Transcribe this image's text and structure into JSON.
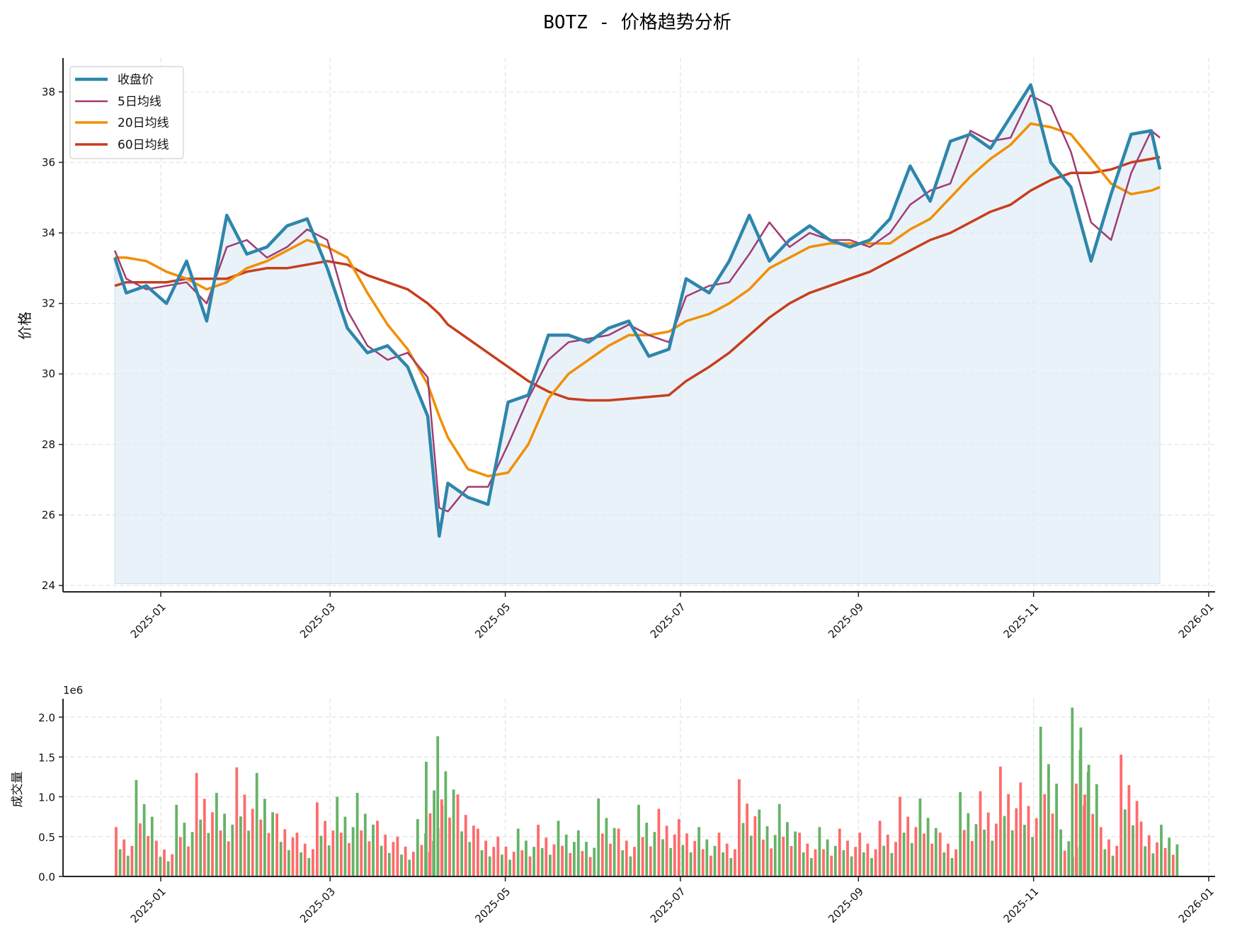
{
  "title": "BOTZ - 价格趋势分析",
  "colors": {
    "close": "#2e86ab",
    "ma5": "#a23b72",
    "ma20": "#f18f01",
    "ma60": "#c73e1d",
    "fill": "#dbe9f3",
    "vol_up": "#ff6b6b",
    "vol_down": "#66b366"
  },
  "price_panel": {
    "ylabel": "价格",
    "yticks": [
      "24",
      "26",
      "28",
      "30",
      "32",
      "34",
      "36",
      "38"
    ],
    "xticks": [
      "2025-01",
      "2025-03",
      "2025-05",
      "2025-07",
      "2025-09",
      "2025-11",
      "2026-01"
    ],
    "legend": [
      "收盘价",
      "5日均线",
      "20日均线",
      "60日均线"
    ]
  },
  "volume_panel": {
    "ylabel": "成交量",
    "multiplier": "1e6",
    "yticks": [
      "0.0",
      "0.5",
      "1.0",
      "1.5",
      "2.0"
    ],
    "xticks": [
      "2025-01",
      "2025-03",
      "2025-05",
      "2025-07",
      "2025-09",
      "2025-11",
      "2026-01"
    ]
  },
  "chart_data": [
    {
      "type": "line",
      "title": "BOTZ - 价格趋势分析",
      "xlabel": "",
      "ylabel": "价格",
      "ylim": [
        23.8,
        38.9
      ],
      "xlim": [
        "2024-11-28",
        "2026-01-03"
      ],
      "grid": true,
      "legend_position": "upper left",
      "x": [
        "2024-12-16",
        "2024-12-20",
        "2024-12-27",
        "2025-01-03",
        "2025-01-10",
        "2025-01-17",
        "2025-01-24",
        "2025-01-31",
        "2025-02-07",
        "2025-02-14",
        "2025-02-21",
        "2025-02-28",
        "2025-03-07",
        "2025-03-14",
        "2025-03-21",
        "2025-03-28",
        "2025-04-04",
        "2025-04-08",
        "2025-04-11",
        "2025-04-18",
        "2025-04-25",
        "2025-05-02",
        "2025-05-09",
        "2025-05-16",
        "2025-05-23",
        "2025-05-30",
        "2025-06-06",
        "2025-06-13",
        "2025-06-20",
        "2025-06-27",
        "2025-07-03",
        "2025-07-11",
        "2025-07-18",
        "2025-07-25",
        "2025-08-01",
        "2025-08-08",
        "2025-08-15",
        "2025-08-22",
        "2025-08-29",
        "2025-09-05",
        "2025-09-12",
        "2025-09-19",
        "2025-09-26",
        "2025-10-03",
        "2025-10-10",
        "2025-10-17",
        "2025-10-24",
        "2025-10-31",
        "2025-11-07",
        "2025-11-14",
        "2025-11-21",
        "2025-11-28",
        "2025-12-05",
        "2025-12-12",
        "2025-12-15"
      ],
      "series": [
        {
          "name": "收盘价",
          "values": [
            33.3,
            32.3,
            32.5,
            32.0,
            33.2,
            31.5,
            34.5,
            33.4,
            33.6,
            34.2,
            34.4,
            33.0,
            31.3,
            30.6,
            30.8,
            30.2,
            28.8,
            25.4,
            26.9,
            26.5,
            26.3,
            29.2,
            29.4,
            31.1,
            31.1,
            30.9,
            31.3,
            31.5,
            30.5,
            30.7,
            32.7,
            32.3,
            33.2,
            34.5,
            33.2,
            33.8,
            34.2,
            33.8,
            33.6,
            33.8,
            34.4,
            35.9,
            34.9,
            36.6,
            36.8,
            36.4,
            37.3,
            38.2,
            36.0,
            35.3,
            33.2,
            35.1,
            36.8,
            36.9,
            35.8
          ]
        },
        {
          "name": "5日均线",
          "values": [
            33.5,
            32.7,
            32.4,
            32.5,
            32.6,
            32.0,
            33.6,
            33.8,
            33.3,
            33.6,
            34.1,
            33.8,
            31.8,
            30.8,
            30.4,
            30.6,
            29.9,
            26.2,
            26.1,
            26.8,
            26.8,
            28.0,
            29.3,
            30.4,
            30.9,
            31.0,
            31.1,
            31.4,
            31.1,
            30.9,
            32.2,
            32.5,
            32.6,
            33.4,
            34.3,
            33.6,
            34.0,
            33.8,
            33.8,
            33.6,
            34.0,
            34.8,
            35.2,
            35.4,
            36.9,
            36.6,
            36.7,
            37.9,
            37.6,
            36.3,
            34.3,
            33.8,
            35.7,
            36.9,
            36.7
          ]
        },
        {
          "name": "20日均线",
          "values": [
            33.3,
            33.3,
            33.2,
            32.9,
            32.7,
            32.4,
            32.6,
            33.0,
            33.2,
            33.5,
            33.8,
            33.6,
            33.3,
            32.3,
            31.4,
            30.7,
            29.7,
            28.8,
            28.2,
            27.3,
            27.1,
            27.2,
            28.0,
            29.3,
            30.0,
            30.4,
            30.8,
            31.1,
            31.1,
            31.2,
            31.5,
            31.7,
            32.0,
            32.4,
            33.0,
            33.3,
            33.6,
            33.7,
            33.7,
            33.7,
            33.7,
            34.1,
            34.4,
            35.0,
            35.6,
            36.1,
            36.5,
            37.1,
            37.0,
            36.8,
            36.1,
            35.4,
            35.1,
            35.2,
            35.3
          ]
        },
        {
          "name": "60日均线",
          "values": [
            32.5,
            32.6,
            32.6,
            32.6,
            32.7,
            32.7,
            32.7,
            32.9,
            33.0,
            33.0,
            33.1,
            33.2,
            33.1,
            32.8,
            32.6,
            32.4,
            32.0,
            31.7,
            31.4,
            31.0,
            30.6,
            30.2,
            29.8,
            29.5,
            29.3,
            29.25,
            29.25,
            29.3,
            29.35,
            29.4,
            29.8,
            30.2,
            30.6,
            31.1,
            31.6,
            32.0,
            32.3,
            32.5,
            32.7,
            32.9,
            33.2,
            33.5,
            33.8,
            34.0,
            34.3,
            34.6,
            34.8,
            35.2,
            35.5,
            35.7,
            35.7,
            35.8,
            36.0,
            36.1,
            36.15
          ]
        }
      ]
    },
    {
      "type": "bar",
      "title": "",
      "xlabel": "",
      "ylabel": "成交量",
      "ylim": [
        0,
        2.23
      ],
      "unit": "1e6",
      "grid": true,
      "x": [
        "2024-12-16",
        "2024-12-23",
        "2024-12-30",
        "2025-01-06",
        "2025-01-13",
        "2025-01-20",
        "2025-01-27",
        "2025-02-03",
        "2025-02-10",
        "2025-02-17",
        "2025-02-24",
        "2025-03-03",
        "2025-03-10",
        "2025-03-17",
        "2025-03-24",
        "2025-03-31",
        "2025-04-03",
        "2025-04-07",
        "2025-04-14",
        "2025-04-21",
        "2025-04-28",
        "2025-05-05",
        "2025-05-12",
        "2025-05-19",
        "2025-05-26",
        "2025-06-02",
        "2025-06-09",
        "2025-06-16",
        "2025-06-23",
        "2025-06-30",
        "2025-07-07",
        "2025-07-14",
        "2025-07-21",
        "2025-07-28",
        "2025-08-04",
        "2025-08-11",
        "2025-08-18",
        "2025-08-25",
        "2025-09-01",
        "2025-09-08",
        "2025-09-15",
        "2025-09-22",
        "2025-09-29",
        "2025-10-06",
        "2025-10-13",
        "2025-10-20",
        "2025-10-27",
        "2025-11-03",
        "2025-11-10",
        "2025-11-14",
        "2025-11-17",
        "2025-11-24",
        "2025-12-01",
        "2025-12-08",
        "2025-12-15"
      ],
      "values": [
        0.62,
        1.21,
        0.45,
        0.9,
        1.3,
        1.05,
        1.37,
        1.3,
        0.79,
        0.55,
        0.93,
        1.0,
        1.05,
        0.7,
        0.5,
        0.72,
        1.44,
        1.76,
        1.03,
        0.6,
        0.5,
        0.6,
        0.65,
        0.7,
        0.58,
        0.98,
        0.6,
        0.9,
        0.85,
        0.72,
        0.62,
        0.55,
        1.22,
        0.84,
        0.91,
        0.55,
        0.62,
        0.6,
        0.55,
        0.7,
        1.0,
        0.98,
        0.55,
        1.06,
        1.07,
        1.38,
        1.18,
        1.88,
        0.59,
        2.12,
        1.87,
        0.62,
        1.53,
        0.69,
        0.65
      ],
      "colors": [
        "up",
        "down",
        "up",
        "down",
        "up",
        "down",
        "up",
        "down",
        "up",
        "up",
        "up",
        "down",
        "down",
        "up",
        "up",
        "down",
        "down",
        "down",
        "up",
        "up",
        "up",
        "down",
        "up",
        "down",
        "down",
        "down",
        "up",
        "down",
        "up",
        "up",
        "down",
        "up",
        "up",
        "down",
        "down",
        "up",
        "down",
        "up",
        "up",
        "up",
        "up",
        "down",
        "up",
        "down",
        "up",
        "up",
        "up",
        "down",
        "down",
        "down",
        "down",
        "up",
        "up",
        "up",
        "down"
      ]
    }
  ]
}
